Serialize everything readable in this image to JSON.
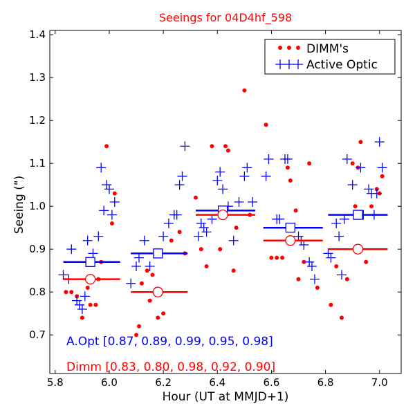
{
  "chart_data": {
    "type": "scatter",
    "title": "Seeings for 04D4hf_598",
    "xlabel": "Hour (UT at MMJD+1)",
    "ylabel": "Seeing (\")",
    "xlim": [
      5.78,
      7.08
    ],
    "ylim": [
      0.61,
      1.41
    ],
    "xticks": [
      {
        "value": 5.8,
        "label": "5.8"
      },
      {
        "value": 6.0,
        "label": "6.0"
      },
      {
        "value": 6.2,
        "label": "6.2"
      },
      {
        "value": 6.4,
        "label": "6.4"
      },
      {
        "value": 6.6,
        "label": "6.6"
      },
      {
        "value": 6.8,
        "label": "6.8"
      },
      {
        "value": 7.0,
        "label": "7.0"
      }
    ],
    "yticks": [
      {
        "value": 0.7,
        "label": "0.7"
      },
      {
        "value": 0.8,
        "label": "0.8"
      },
      {
        "value": 0.9,
        "label": "0.9"
      },
      {
        "value": 1.0,
        "label": "1.0"
      },
      {
        "value": 1.1,
        "label": "1.1"
      },
      {
        "value": 1.2,
        "label": "1.2"
      },
      {
        "value": 1.3,
        "label": "1.3"
      },
      {
        "value": 1.4,
        "label": "1.4"
      }
    ],
    "legend_position": "top-right",
    "colors": {
      "dimm": "#ff0000",
      "aopt": "#0000ff",
      "title": "#ff0000",
      "axis": "#000000"
    },
    "series": [
      {
        "name": "DIMM's",
        "marker": "dot",
        "color": "#ff0000",
        "points": [
          [
            5.84,
            0.8
          ],
          [
            5.86,
            0.8
          ],
          [
            5.88,
            0.79
          ],
          [
            5.9,
            0.74
          ],
          [
            5.92,
            0.81
          ],
          [
            5.93,
            0.77
          ],
          [
            5.95,
            0.77
          ],
          [
            5.96,
            0.83
          ],
          [
            5.97,
            0.87
          ],
          [
            5.99,
            1.14
          ],
          [
            6.01,
            0.96
          ],
          [
            6.02,
            1.03
          ],
          [
            6.1,
            0.7
          ],
          [
            6.11,
            0.72
          ],
          [
            6.12,
            0.82
          ],
          [
            6.14,
            0.85
          ],
          [
            6.15,
            0.78
          ],
          [
            6.16,
            0.84
          ],
          [
            6.18,
            0.74
          ],
          [
            6.2,
            0.75
          ],
          [
            6.23,
            0.92
          ],
          [
            6.26,
            0.94
          ],
          [
            6.28,
            0.89
          ],
          [
            6.32,
            1.02
          ],
          [
            6.34,
            0.9
          ],
          [
            6.36,
            0.86
          ],
          [
            6.38,
            1.14
          ],
          [
            6.41,
            0.9
          ],
          [
            6.43,
            1.14
          ],
          [
            6.44,
            1.13
          ],
          [
            6.46,
            0.85
          ],
          [
            6.47,
            0.95
          ],
          [
            6.5,
            1.27
          ],
          [
            6.52,
            0.98
          ],
          [
            6.58,
            1.19
          ],
          [
            6.6,
            0.88
          ],
          [
            6.62,
            0.88
          ],
          [
            6.64,
            0.88
          ],
          [
            6.66,
            1.09
          ],
          [
            6.67,
            1.06
          ],
          [
            6.69,
            0.99
          ],
          [
            6.7,
            0.83
          ],
          [
            6.72,
            0.87
          ],
          [
            6.74,
            1.1
          ],
          [
            6.77,
            0.81
          ],
          [
            6.82,
            0.77
          ],
          [
            6.84,
            0.86
          ],
          [
            6.86,
            0.74
          ],
          [
            6.88,
            0.83
          ],
          [
            6.9,
            1.1
          ],
          [
            6.91,
            1.0
          ],
          [
            6.92,
            1.09
          ],
          [
            6.93,
            1.15
          ],
          [
            6.95,
            0.87
          ],
          [
            6.97,
            1.0
          ],
          [
            6.99,
            1.04
          ],
          [
            7.0,
            1.03
          ],
          [
            7.01,
            1.07
          ]
        ]
      },
      {
        "name": "Active Optic",
        "marker": "plus",
        "color": "#0000ff",
        "points": [
          [
            5.83,
            0.84
          ],
          [
            5.85,
            0.83
          ],
          [
            5.86,
            0.9
          ],
          [
            5.88,
            0.78
          ],
          [
            5.89,
            0.77
          ],
          [
            5.9,
            0.76
          ],
          [
            5.91,
            0.79
          ],
          [
            5.92,
            0.92
          ],
          [
            5.94,
            0.89
          ],
          [
            5.96,
            0.93
          ],
          [
            5.97,
            1.09
          ],
          [
            5.98,
            0.99
          ],
          [
            5.99,
            1.05
          ],
          [
            6.0,
            1.04
          ],
          [
            6.01,
            0.98
          ],
          [
            6.02,
            1.01
          ],
          [
            6.08,
            0.82
          ],
          [
            6.1,
            0.86
          ],
          [
            6.11,
            0.88
          ],
          [
            6.13,
            0.92
          ],
          [
            6.15,
            0.86
          ],
          [
            6.17,
            0.8
          ],
          [
            6.18,
            0.89
          ],
          [
            6.2,
            0.93
          ],
          [
            6.22,
            0.96
          ],
          [
            6.24,
            0.98
          ],
          [
            6.25,
            0.98
          ],
          [
            6.26,
            1.05
          ],
          [
            6.27,
            1.07
          ],
          [
            6.28,
            1.14
          ],
          [
            6.33,
            0.93
          ],
          [
            6.34,
            0.96
          ],
          [
            6.35,
            0.95
          ],
          [
            6.36,
            0.94
          ],
          [
            6.38,
            0.97
          ],
          [
            6.4,
            1.06
          ],
          [
            6.41,
            1.08
          ],
          [
            6.42,
            1.04
          ],
          [
            6.44,
            1.0
          ],
          [
            6.46,
            0.92
          ],
          [
            6.48,
            1.01
          ],
          [
            6.5,
            1.07
          ],
          [
            6.51,
            1.09
          ],
          [
            6.53,
            1.01
          ],
          [
            6.58,
            1.07
          ],
          [
            6.59,
            1.11
          ],
          [
            6.62,
            0.97
          ],
          [
            6.63,
            0.97
          ],
          [
            6.65,
            1.11
          ],
          [
            6.66,
            1.11
          ],
          [
            6.68,
            0.95
          ],
          [
            6.7,
            0.93
          ],
          [
            6.71,
            0.92
          ],
          [
            6.72,
            0.91
          ],
          [
            6.74,
            0.87
          ],
          [
            6.75,
            0.86
          ],
          [
            6.76,
            0.83
          ],
          [
            6.81,
            0.89
          ],
          [
            6.82,
            0.88
          ],
          [
            6.84,
            0.96
          ],
          [
            6.85,
            0.93
          ],
          [
            6.86,
            0.84
          ],
          [
            6.87,
            0.97
          ],
          [
            6.88,
            1.11
          ],
          [
            6.9,
            1.05
          ],
          [
            6.91,
            0.98
          ],
          [
            6.93,
            1.09
          ],
          [
            6.94,
            0.98
          ],
          [
            6.96,
            1.04
          ],
          [
            6.97,
            1.03
          ],
          [
            6.98,
            0.98
          ],
          [
            6.99,
            1.03
          ],
          [
            7.0,
            1.15
          ],
          [
            7.01,
            1.09
          ]
        ]
      }
    ],
    "bins": [
      {
        "x_start": 5.83,
        "x_end": 6.04,
        "center": 5.93,
        "aopt_mean": 0.87,
        "dimm_mean": 0.83
      },
      {
        "x_start": 6.08,
        "x_end": 6.29,
        "center": 6.18,
        "aopt_mean": 0.89,
        "dimm_mean": 0.8
      },
      {
        "x_start": 6.32,
        "x_end": 6.54,
        "center": 6.42,
        "aopt_mean": 0.99,
        "dimm_mean": 0.98
      },
      {
        "x_start": 6.57,
        "x_end": 6.79,
        "center": 6.67,
        "aopt_mean": 0.95,
        "dimm_mean": 0.92
      },
      {
        "x_start": 6.81,
        "x_end": 7.03,
        "center": 6.92,
        "aopt_mean": 0.98,
        "dimm_mean": 0.9
      }
    ],
    "annotations": [
      {
        "key": "aopt",
        "text": "A.Opt [0.87, 0.89, 0.99, 0.95, 0.98]",
        "color": "#0000ff"
      },
      {
        "key": "dimm",
        "text": "Dimm [0.83, 0.80, 0.98, 0.92, 0.90]",
        "color": "#ff0000"
      }
    ]
  }
}
